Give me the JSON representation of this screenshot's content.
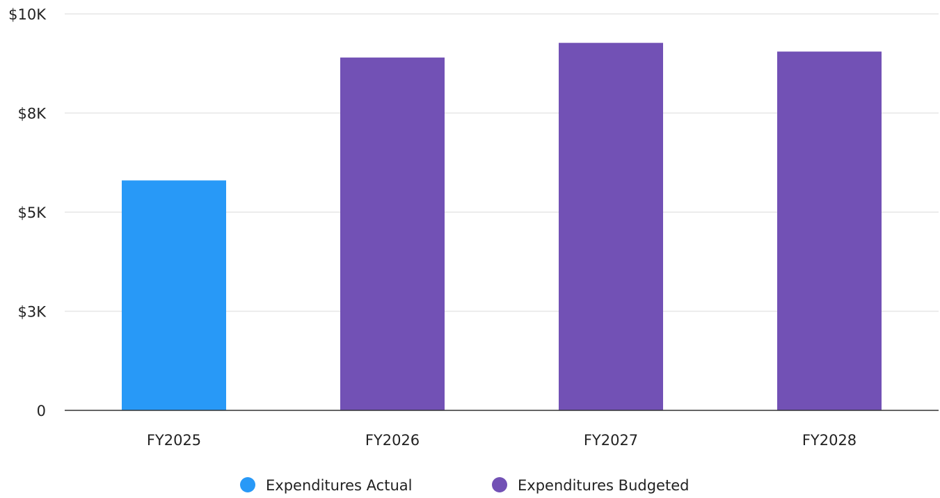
{
  "chart_data": {
    "type": "bar",
    "title": "",
    "xlabel": "",
    "ylabel": "",
    "categories": [
      "FY2025",
      "FY2026",
      "FY2027",
      "FY2028"
    ],
    "values": [
      5800,
      8900,
      9270,
      9050
    ],
    "series_index": [
      0,
      1,
      1,
      1
    ],
    "series": [
      {
        "name": "Expenditures Actual",
        "color": "#2899f7"
      },
      {
        "name": "Expenditures Budgeted",
        "color": "#7251b5"
      }
    ],
    "ylim": [
      0,
      10000
    ],
    "yticks": [
      {
        "value": 0,
        "label": "0"
      },
      {
        "value": 2500,
        "label": "$3K"
      },
      {
        "value": 5000,
        "label": "$5K"
      },
      {
        "value": 7500,
        "label": "$8K"
      },
      {
        "value": 10000,
        "label": "$10K"
      }
    ],
    "grid": true,
    "legend_position": "bottom-center",
    "colors": {
      "grid": "#e6e6e6",
      "axis": "#333333",
      "text": "#222222"
    }
  }
}
